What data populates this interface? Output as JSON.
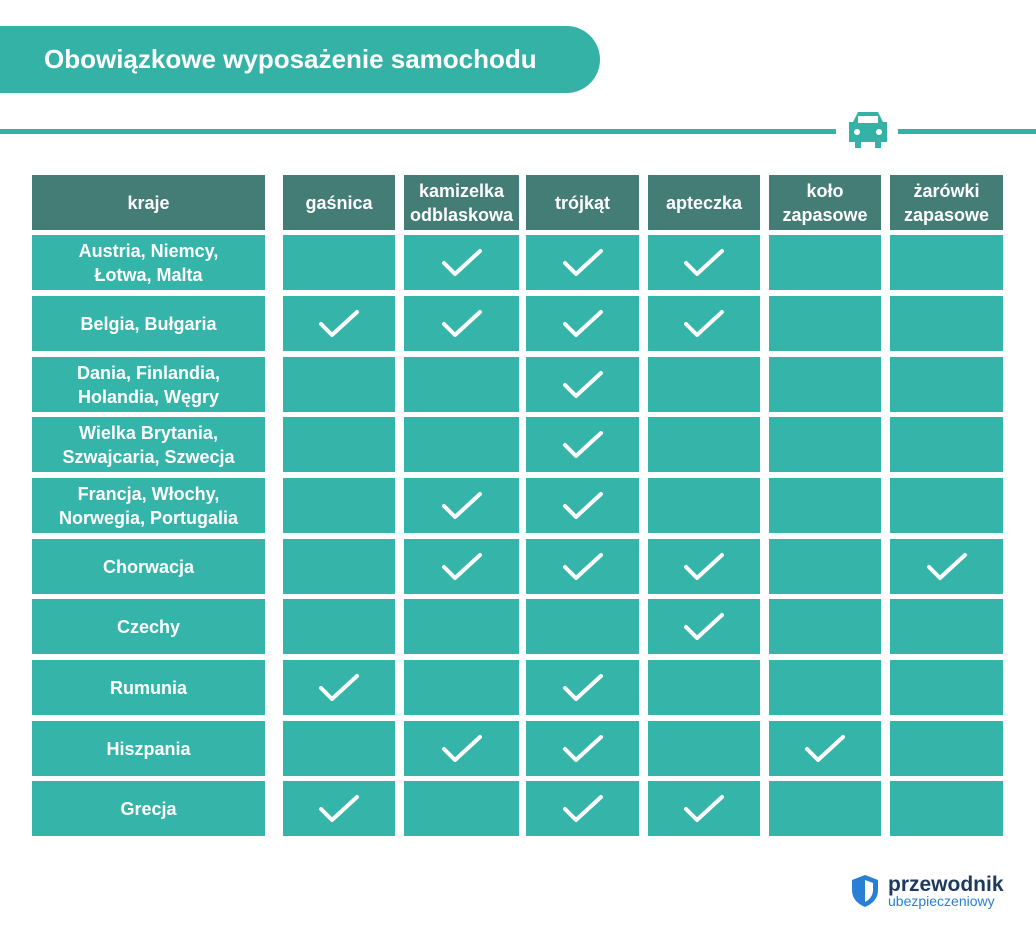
{
  "title": "Obowiązkowe wyposażenie samochodu",
  "table": {
    "headers": [
      [
        "kraje"
      ],
      [
        "gaśnica"
      ],
      [
        "kamizelka",
        "odblaskowa"
      ],
      [
        "trójkąt"
      ],
      [
        "apteczka"
      ],
      [
        "koło",
        "zapasowe"
      ],
      [
        "żarówki",
        "zapasowe"
      ]
    ],
    "rows": [
      {
        "countries": [
          "Austria, Niemcy,",
          "Łotwa, Malta"
        ],
        "checks": [
          false,
          true,
          true,
          true,
          false,
          false
        ]
      },
      {
        "countries": [
          "Belgia, Bułgaria"
        ],
        "checks": [
          true,
          true,
          true,
          true,
          false,
          false
        ]
      },
      {
        "countries": [
          "Dania, Finlandia,",
          "Holandia, Węgry"
        ],
        "checks": [
          false,
          false,
          true,
          false,
          false,
          false
        ]
      },
      {
        "countries": [
          "Wielka Brytania,",
          "Szwajcaria, Szwecja"
        ],
        "checks": [
          false,
          false,
          true,
          false,
          false,
          false
        ]
      },
      {
        "countries": [
          "Francja, Włochy,",
          "Norwegia, Portugalia"
        ],
        "checks": [
          false,
          true,
          true,
          false,
          false,
          false
        ]
      },
      {
        "countries": [
          "Chorwacja"
        ],
        "checks": [
          false,
          true,
          true,
          true,
          false,
          true
        ]
      },
      {
        "countries": [
          "Czechy"
        ],
        "checks": [
          false,
          false,
          false,
          true,
          false,
          false
        ]
      },
      {
        "countries": [
          "Rumunia"
        ],
        "checks": [
          true,
          false,
          true,
          false,
          false,
          false
        ]
      },
      {
        "countries": [
          "Hiszpania"
        ],
        "checks": [
          false,
          true,
          true,
          false,
          true,
          false
        ]
      },
      {
        "countries": [
          "Grecja"
        ],
        "checks": [
          true,
          false,
          true,
          true,
          false,
          false
        ]
      }
    ]
  },
  "logo": {
    "line1": "przewodnik",
    "line2": "ubezpieczeniowy"
  }
}
